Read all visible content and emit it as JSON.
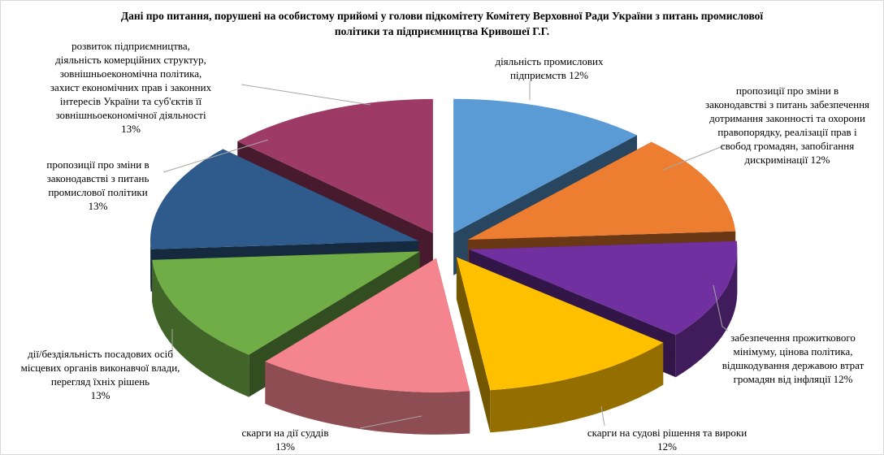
{
  "title": "Дані про питання, порушені на особистому прийомі у голови підкомітету Комітету Верховної Ради України з питань промислової\nполітики та підприємництва Кривошеї Г.Г.",
  "chart_data": {
    "type": "pie",
    "style": "3d-exploded",
    "direction": "clockwise",
    "start_angle_deg": 0,
    "background": "#FFFFFF",
    "title": "Дані про питання, порушені на особистому прийомі у голови підкомітету Комітету Верховної Ради України з питань промислової політики та підприємництва Кривошеї Г.Г.",
    "slices": [
      {
        "label": "діяльність промислових підприємств",
        "value": 12,
        "color": "#5B9BD5",
        "callout": "діяльність промислових\nпідприємств 12%"
      },
      {
        "label": "пропозиції про зміни в законодавстві з питань забезпечення дотримання законності та охорони правопорядку, реалізації прав і свобод громадян, запобігання дискримінації",
        "value": 12,
        "color": "#ED7D31",
        "callout": "пропозиції про зміни в\nзаконодавстві з питань забезпечення\nдотримання законності та охорони\nправопорядку, реалізації прав і\nсвобод громадян, запобігання\nдискримінації 12%"
      },
      {
        "label": "забезпечення прожиткового мінімуму, цінова політика, відшкодування державою втрат громадян від інфляції",
        "value": 12,
        "color": "#7030A0",
        "callout": "забезпечення прожиткового\nмінімуму, цінова політика,\nвідшкодування державою втрат\nгромадян від інфляції 12%"
      },
      {
        "label": "скарги на судові рішення та вироки",
        "value": 12,
        "color": "#FFC000",
        "callout": "скарги на судові рішення та вироки\n12%"
      },
      {
        "label": "скарги на дії суддів",
        "value": 13,
        "color": "#F4858E",
        "callout": "скарги на дії суддів\n13%"
      },
      {
        "label": "дії/бездіяльність посадових осіб місцевих органів виконавчої влади, перегляд їхніх рішень",
        "value": 13,
        "color": "#70AD47",
        "callout": "дії/бездіяльність посадових осіб\nмісцевих органів виконавчої влади,\nперегляд їхніх рішень\n13%"
      },
      {
        "label": "пропозиції про зміни в законодавстві з питань промислової політики",
        "value": 13,
        "color": "#2E5B8C",
        "callout": "пропозиції про зміни в\nзаконодавстві з питань\nпромислової політики\n13%"
      },
      {
        "label": "розвиток підприємництва, діяльність комерційних структур, зовнішньоекономічна політика, захист економічних прав і законних інтересів України та суб'єктів її зовнішньоекономічної діяльності",
        "value": 13,
        "color": "#9E3A66",
        "callout": "розвиток підприємництва,\nдіяльність комерційних структур,\nзовнішньоекономічна політика,\nзахист економічних прав і законних\nінтересів України та суб'єктів її\nзовнішньоекономічної діяльності\n13%"
      }
    ]
  }
}
